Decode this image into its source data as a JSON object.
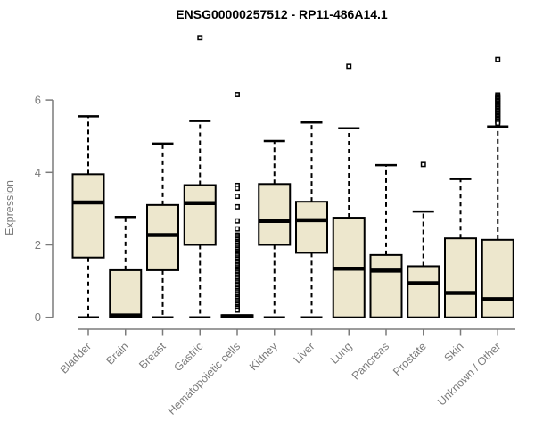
{
  "colors": {
    "background": "#ffffff",
    "box_fill": "#EDE7CD",
    "box_stroke": "#000000",
    "median": "#000000",
    "whisker": "#000000",
    "outlier_stroke": "#000000",
    "outlier_fill": "#ffffff",
    "axis": "#7b7b7b",
    "label": "#7b7b7b",
    "title": "#000000"
  },
  "chart_data": {
    "type": "boxplot",
    "title": "ENSG00000257512 - RP11-486A14.1",
    "xlabel": "",
    "ylabel": "Expression",
    "ylim": [
      0,
      7.8
    ],
    "yticks": [
      0,
      2,
      4,
      6
    ],
    "grid": false,
    "legend": "none",
    "categories": [
      "Bladder",
      "Brain",
      "Breast",
      "Gastric",
      "Hematopoietic cells",
      "Kidney",
      "Liver",
      "Lung",
      "Pancreas",
      "Prostate",
      "Skin",
      "Unknown / Other"
    ],
    "boxes": [
      {
        "category": "Bladder",
        "whisker_low": 0,
        "q1": 1.65,
        "median": 3.17,
        "q3": 3.95,
        "whisker_high": 5.55,
        "outliers": []
      },
      {
        "category": "Brain",
        "whisker_low": 0,
        "q1": 0,
        "median": 0.05,
        "q3": 1.3,
        "whisker_high": 2.77,
        "outliers": []
      },
      {
        "category": "Breast",
        "whisker_low": 0,
        "q1": 1.3,
        "median": 2.27,
        "q3": 3.1,
        "whisker_high": 4.8,
        "outliers": []
      },
      {
        "category": "Gastric",
        "whisker_low": 0,
        "q1": 2.0,
        "median": 3.15,
        "q3": 3.65,
        "whisker_high": 5.42,
        "outliers": [
          7.72
        ]
      },
      {
        "category": "Hematopoietic cells",
        "whisker_low": 0,
        "q1": 0,
        "median": 0.03,
        "q3": 0.06,
        "whisker_high": 0.06,
        "outliers": [
          6.15,
          3.64,
          3.56,
          3.34,
          3.05,
          2.66,
          2.44,
          2.27,
          2.23,
          2.18,
          2.14,
          2.09,
          2.05,
          2.0,
          1.96,
          1.91,
          1.87,
          1.82,
          1.78,
          1.73,
          1.69,
          1.64,
          1.6,
          1.55,
          1.51,
          1.46,
          1.42,
          1.37,
          1.33,
          1.28,
          1.24,
          1.19,
          1.15,
          1.1,
          1.06,
          1.01,
          0.97,
          0.92,
          0.88,
          0.83,
          0.79,
          0.74,
          0.7,
          0.65,
          0.61,
          0.56,
          0.52,
          0.47,
          0.43,
          0.38,
          0.34,
          0.29,
          0.25,
          0.2
        ]
      },
      {
        "category": "Kidney",
        "whisker_low": 0,
        "q1": 2.0,
        "median": 2.66,
        "q3": 3.68,
        "whisker_high": 4.87,
        "outliers": []
      },
      {
        "category": "Liver",
        "whisker_low": 0,
        "q1": 1.78,
        "median": 2.68,
        "q3": 3.19,
        "whisker_high": 5.38,
        "outliers": []
      },
      {
        "category": "Lung",
        "whisker_low": 0,
        "q1": 0,
        "median": 1.34,
        "q3": 2.75,
        "whisker_high": 5.22,
        "outliers": [
          6.93
        ]
      },
      {
        "category": "Pancreas",
        "whisker_low": 0,
        "q1": 0,
        "median": 1.29,
        "q3": 1.72,
        "whisker_high": 4.2,
        "outliers": []
      },
      {
        "category": "Prostate",
        "whisker_low": 0,
        "q1": 0,
        "median": 0.94,
        "q3": 1.41,
        "whisker_high": 2.92,
        "outliers": [
          4.22
        ]
      },
      {
        "category": "Skin",
        "whisker_low": 0,
        "q1": 0,
        "median": 0.67,
        "q3": 2.18,
        "whisker_high": 3.82,
        "outliers": []
      },
      {
        "category": "Unknown / Other",
        "whisker_low": 0,
        "q1": 0,
        "median": 0.5,
        "q3": 2.14,
        "whisker_high": 5.27,
        "outliers": [
          7.12,
          6.14,
          6.1,
          6.06,
          6.03,
          5.99,
          5.96,
          5.92,
          5.89,
          5.85,
          5.82,
          5.78,
          5.75,
          5.71,
          5.68,
          5.64,
          5.61,
          5.57,
          5.54,
          5.5,
          5.47,
          5.43,
          5.4,
          5.36
        ]
      }
    ]
  }
}
